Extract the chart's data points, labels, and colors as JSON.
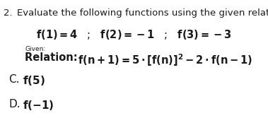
{
  "background_color": "#ffffff",
  "text_color": "#1a1a1a",
  "fig_width": 3.79,
  "fig_height": 1.67,
  "dpi": 100,
  "line1_number": "2.",
  "line1_text": "Evaluate the following functions using the given relations.",
  "line2_text": "f(1) = 4   ;   f(2) = −1   ;   f(3) = −3",
  "given_label": "Given:",
  "relation_bold": "Relation: ",
  "relation_formula": "f(n+1) = 5·[f(n)]",
  "relation_sup": "2",
  "relation_tail": " − 2·f(n−1)",
  "itemC_letter": "C.",
  "itemC_text": "f(5)",
  "itemD_letter": "D.",
  "itemD_text": "f(−1)",
  "fs_title": 9.5,
  "fs_body": 10.5,
  "fs_given": 6.5,
  "fs_items": 11.0
}
